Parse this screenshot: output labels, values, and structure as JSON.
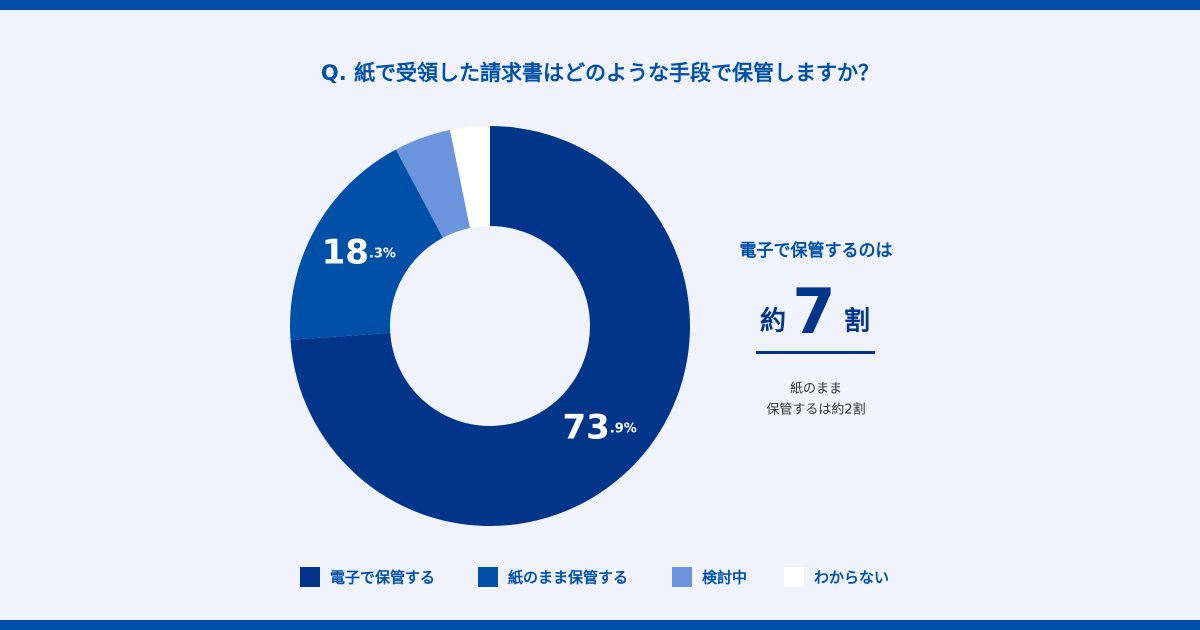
{
  "chart_data": {
    "type": "donut",
    "title": "Q. 紙で受領した請求書はどのような手段で保管しますか？",
    "categories": [
      "電子で保管する",
      "紙のまま保管する",
      "検討中",
      "わからない"
    ],
    "values": [
      73.9,
      18.3,
      4.6,
      3.2
    ],
    "value_labels": [
      "73.9%",
      "18.3%",
      null,
      null
    ],
    "colors": [
      "#00358a",
      "#0050a8",
      "#6a94dc",
      "#ffffff"
    ],
    "side_note": {
      "lead": "電子で保管するのは",
      "prefix": "約",
      "number": "7",
      "suffix": "割",
      "sub1": "紙のまま",
      "sub2": "保管するは約2割"
    }
  }
}
